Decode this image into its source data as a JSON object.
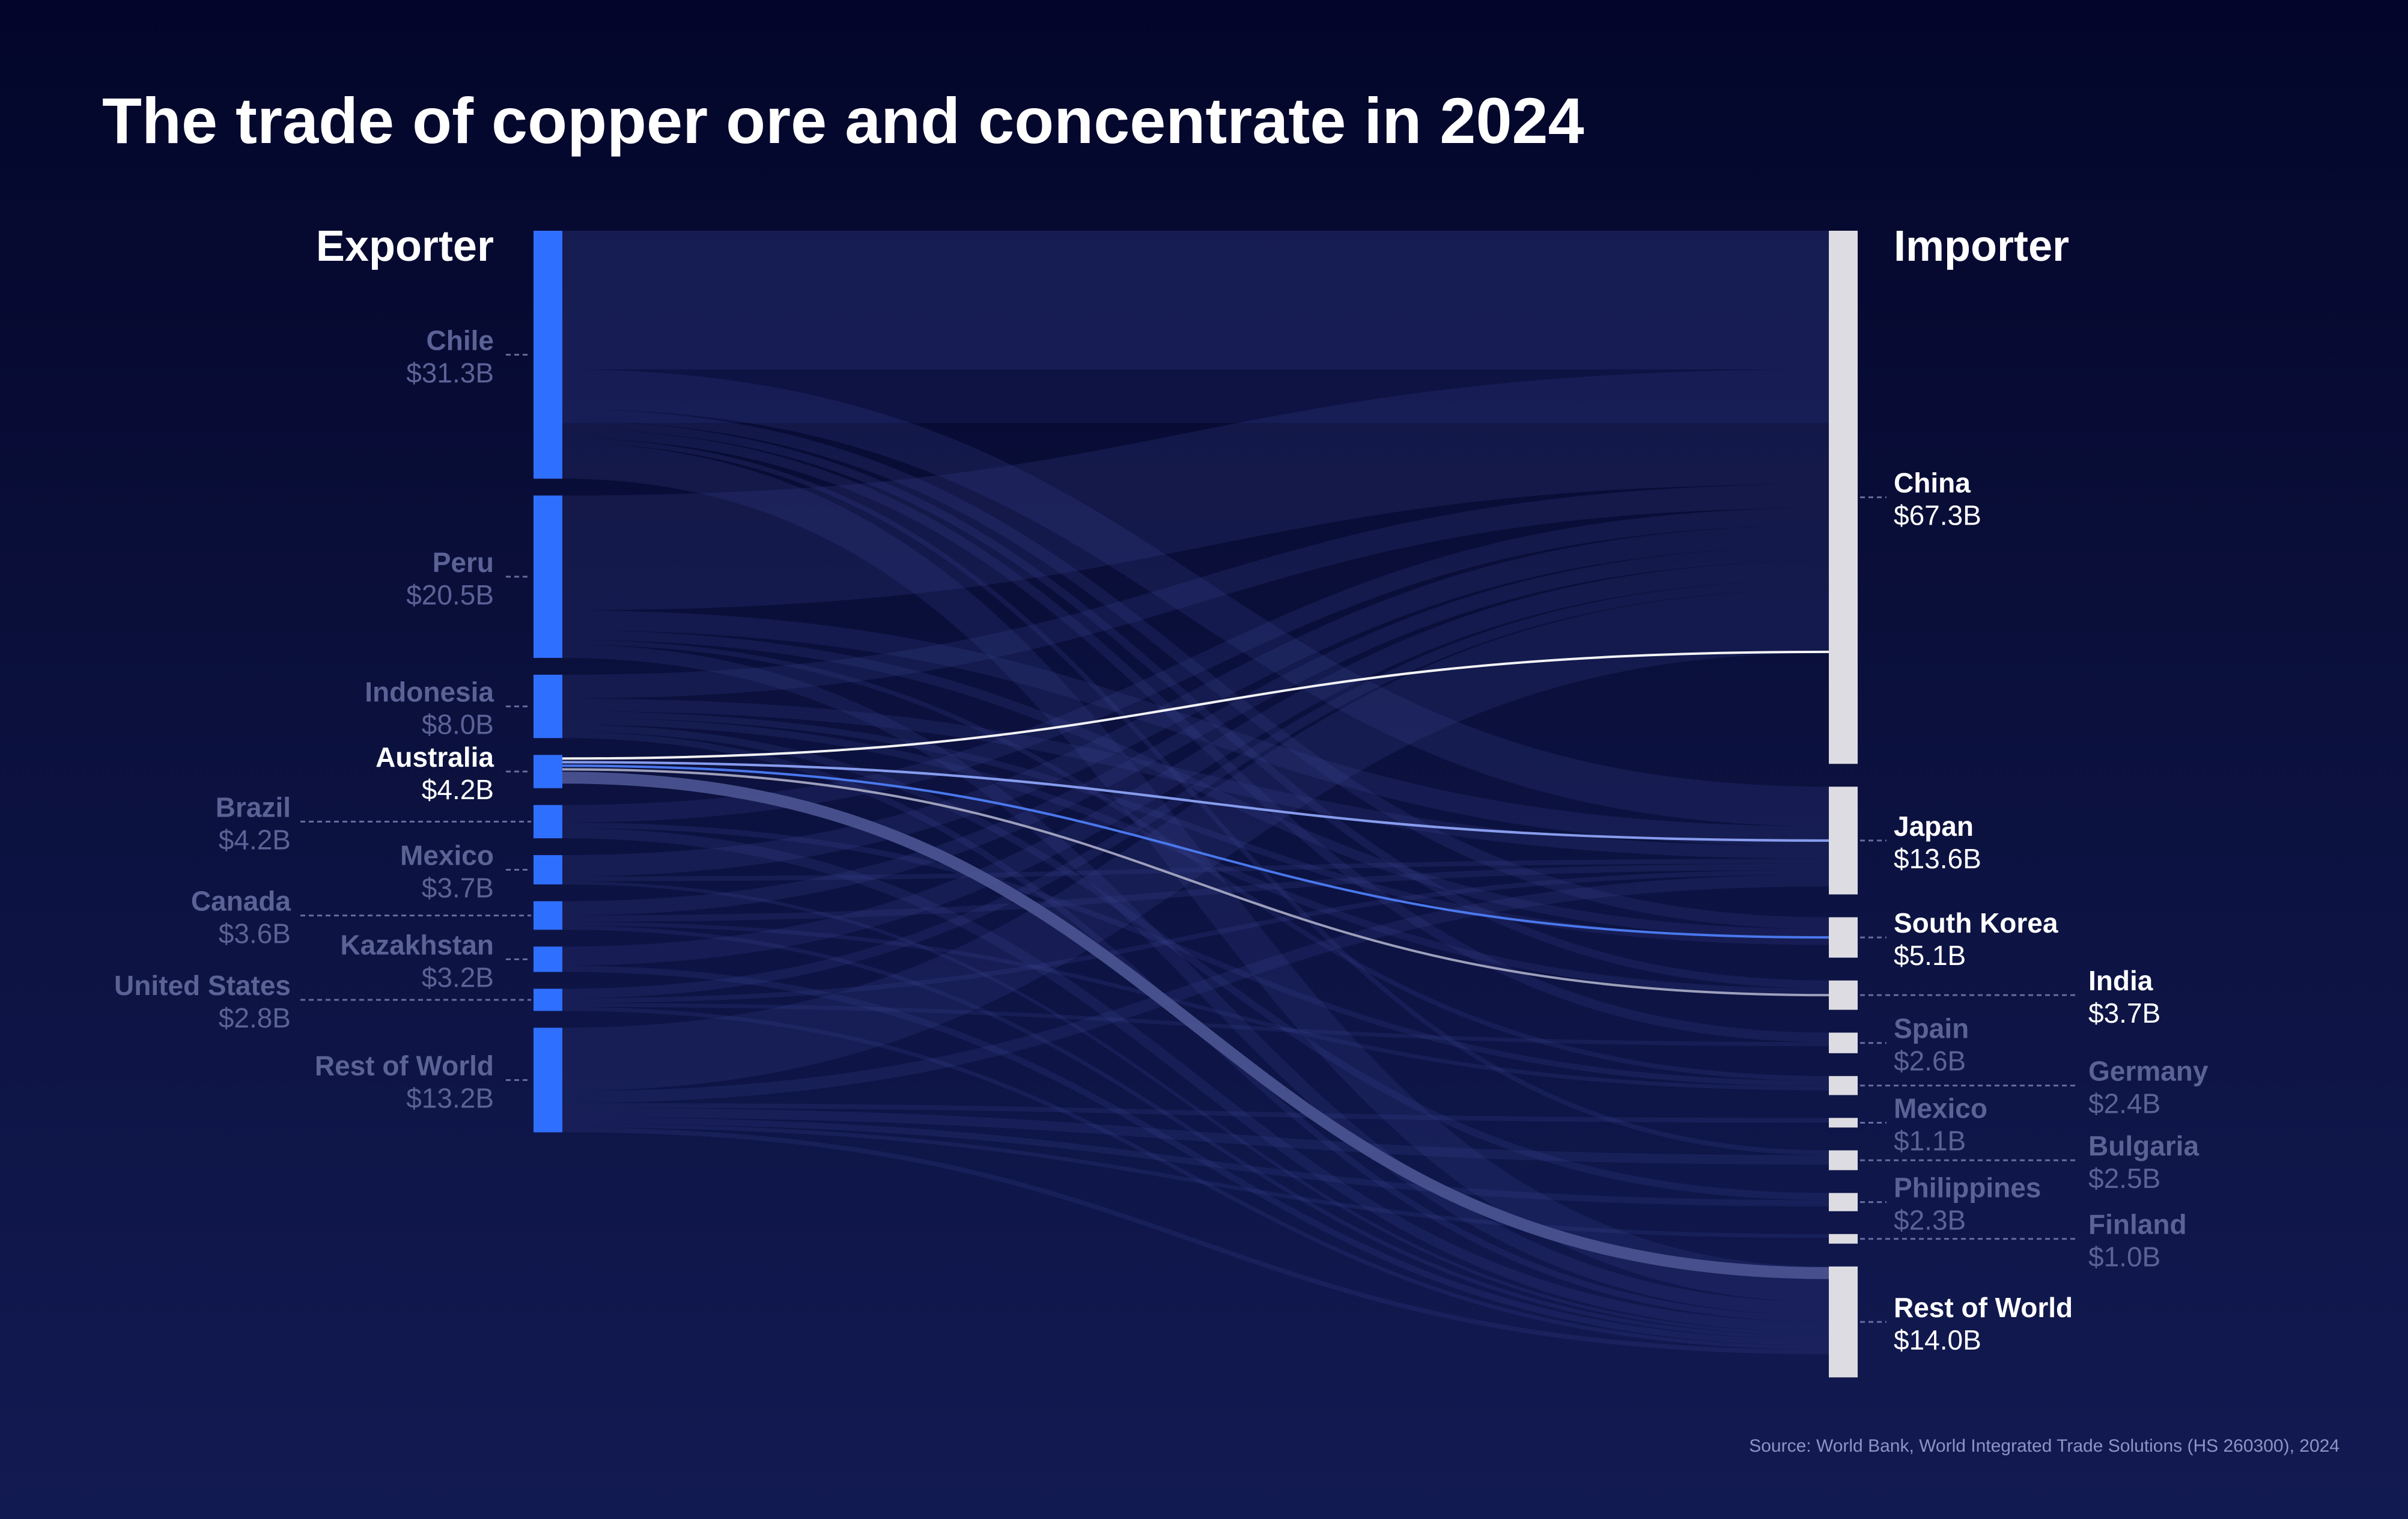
{
  "chart_data": {
    "type": "sankey",
    "title": "The trade of copper ore and concentrate in 2024",
    "source": "Source: World Bank, World Integrated Trade Solutions (HS 260300), 2024",
    "unit": "USD billions",
    "left_heading": "Exporter",
    "right_heading": "Importer",
    "highlighted_exporter": "Australia",
    "colors": {
      "exporter_bar": "#2f6fff",
      "importer_bar": "#dcdce2",
      "label_active": "#ffffff",
      "label_dim": "#5b6296",
      "flow_background": "#3a4690",
      "leader_line": "#7d84b3"
    },
    "exporters": [
      {
        "name": "Chile",
        "value": 31.3,
        "label": "$31.3B"
      },
      {
        "name": "Peru",
        "value": 20.5,
        "label": "$20.5B"
      },
      {
        "name": "Indonesia",
        "value": 8.0,
        "label": "$8.0B"
      },
      {
        "name": "Australia",
        "value": 4.2,
        "label": "$4.2B"
      },
      {
        "name": "Brazil",
        "value": 4.2,
        "label": "$4.2B"
      },
      {
        "name": "Mexico",
        "value": 3.7,
        "label": "$3.7B"
      },
      {
        "name": "Canada",
        "value": 3.6,
        "label": "$3.6B"
      },
      {
        "name": "Kazakhstan",
        "value": 3.2,
        "label": "$3.2B"
      },
      {
        "name": "United States",
        "value": 2.8,
        "label": "$2.8B"
      },
      {
        "name": "Rest of World",
        "value": 13.2,
        "label": "$13.2B"
      }
    ],
    "importers": [
      {
        "name": "China",
        "value": 67.3,
        "label": "$67.3B"
      },
      {
        "name": "Japan",
        "value": 13.6,
        "label": "$13.6B"
      },
      {
        "name": "South Korea",
        "value": 5.1,
        "label": "$5.1B"
      },
      {
        "name": "India",
        "value": 3.7,
        "label": "$3.7B"
      },
      {
        "name": "Spain",
        "value": 2.6,
        "label": "$2.6B"
      },
      {
        "name": "Germany",
        "value": 2.4,
        "label": "$2.4B"
      },
      {
        "name": "Mexico",
        "value": 1.1,
        "label": "$1.1B"
      },
      {
        "name": "Bulgaria",
        "value": 2.5,
        "label": "$2.5B"
      },
      {
        "name": "Philippines",
        "value": 2.3,
        "label": "$2.3B"
      },
      {
        "name": "Finland",
        "value": 1.0,
        "label": "$1.0B"
      },
      {
        "name": "Rest of World",
        "value": 14.0,
        "label": "$14.0B"
      }
    ],
    "highlighted_flows": [
      {
        "from": "Australia",
        "to": "China",
        "value": 0.8,
        "color": "#ffffff"
      },
      {
        "from": "Australia",
        "to": "Japan",
        "value": 0.9,
        "color": "#8da3f5"
      },
      {
        "from": "Australia",
        "to": "South Korea",
        "value": 0.4,
        "color": "#4d7df5"
      },
      {
        "from": "Australia",
        "to": "India",
        "value": 0.6,
        "color": "#a5a8c2"
      },
      {
        "from": "Australia",
        "to": "Rest of World",
        "value": 1.5,
        "color": "#4a5390"
      }
    ],
    "background_flows": [
      {
        "from": "Chile",
        "to": "China",
        "value": 17.5
      },
      {
        "from": "Chile",
        "to": "Japan",
        "value": 5.0
      },
      {
        "from": "Chile",
        "to": "South Korea",
        "value": 1.5
      },
      {
        "from": "Chile",
        "to": "India",
        "value": 1.0
      },
      {
        "from": "Chile",
        "to": "Spain",
        "value": 1.2
      },
      {
        "from": "Chile",
        "to": "Bulgaria",
        "value": 0.6
      },
      {
        "from": "Chile",
        "to": "Rest of World",
        "value": 4.5
      },
      {
        "from": "Peru",
        "to": "China",
        "value": 14.5
      },
      {
        "from": "Peru",
        "to": "Japan",
        "value": 2.5
      },
      {
        "from": "Peru",
        "to": "South Korea",
        "value": 1.2
      },
      {
        "from": "Peru",
        "to": "Germany",
        "value": 0.6
      },
      {
        "from": "Peru",
        "to": "Rest of World",
        "value": 1.7
      },
      {
        "from": "Indonesia",
        "to": "China",
        "value": 3.0
      },
      {
        "from": "Indonesia",
        "to": "Japan",
        "value": 1.6
      },
      {
        "from": "Indonesia",
        "to": "South Korea",
        "value": 0.8
      },
      {
        "from": "Indonesia",
        "to": "India",
        "value": 0.9
      },
      {
        "from": "Indonesia",
        "to": "Philippines",
        "value": 0.9
      },
      {
        "from": "Indonesia",
        "to": "Rest of World",
        "value": 0.8
      },
      {
        "from": "Brazil",
        "to": "China",
        "value": 2.2
      },
      {
        "from": "Brazil",
        "to": "Germany",
        "value": 0.7
      },
      {
        "from": "Brazil",
        "to": "Rest of World",
        "value": 1.3
      },
      {
        "from": "Mexico",
        "to": "China",
        "value": 2.7
      },
      {
        "from": "Mexico",
        "to": "Japan",
        "value": 0.6
      },
      {
        "from": "Mexico",
        "to": "Rest of World",
        "value": 0.4
      },
      {
        "from": "Canada",
        "to": "China",
        "value": 1.8
      },
      {
        "from": "Canada",
        "to": "Japan",
        "value": 0.8
      },
      {
        "from": "Canada",
        "to": "Germany",
        "value": 0.5
      },
      {
        "from": "Canada",
        "to": "Rest of World",
        "value": 0.5
      },
      {
        "from": "Kazakhstan",
        "to": "China",
        "value": 2.4
      },
      {
        "from": "Kazakhstan",
        "to": "Rest of World",
        "value": 0.8
      },
      {
        "from": "United States",
        "to": "China",
        "value": 1.2
      },
      {
        "from": "United States",
        "to": "Japan",
        "value": 0.6
      },
      {
        "from": "United States",
        "to": "Spain",
        "value": 0.5
      },
      {
        "from": "United States",
        "to": "Rest of World",
        "value": 0.5
      },
      {
        "from": "Rest of World",
        "to": "China",
        "value": 8.0
      },
      {
        "from": "Rest of World",
        "to": "Japan",
        "value": 1.5
      },
      {
        "from": "Rest of World",
        "to": "Mexico",
        "value": 0.6
      },
      {
        "from": "Rest of World",
        "to": "Bulgaria",
        "value": 1.2
      },
      {
        "from": "Rest of World",
        "to": "Philippines",
        "value": 0.8
      },
      {
        "from": "Rest of World",
        "to": "Finland",
        "value": 0.5
      },
      {
        "from": "Rest of World",
        "to": "Rest of World",
        "value": 0.6
      }
    ]
  }
}
